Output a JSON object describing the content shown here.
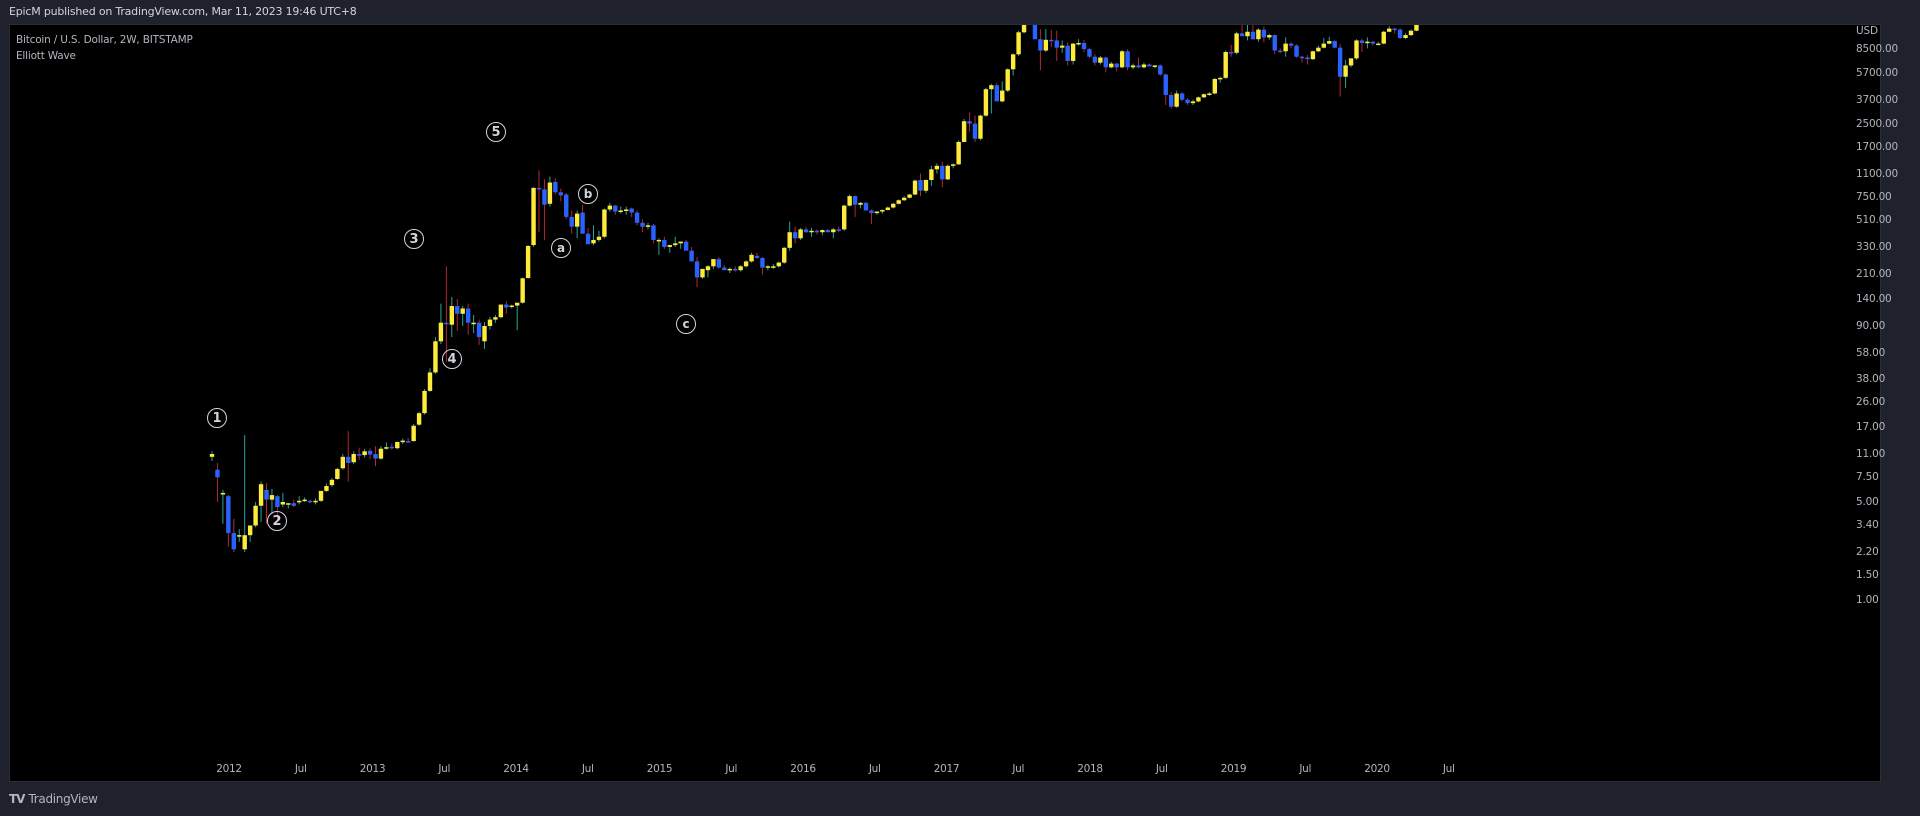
{
  "header": {
    "published_by": "EpicM published on TradingView.com, Mar 11, 2023 19:46 UTC+8"
  },
  "legend": {
    "symbol": "Bitcoin / U.S. Dollar, 2W, BITSTAMP",
    "indicator": "Elliott Wave"
  },
  "footer": {
    "logo_mark": "TV",
    "logo_text": "TradingView"
  },
  "colors": {
    "up_body": "#ffeb3b",
    "down_body": "#2962ff",
    "up_wick": "#26a69a",
    "down_wick": "#b22833",
    "background": "#000000",
    "frame": "#1f222d",
    "text": "#b2b5be"
  },
  "chart_data": {
    "type": "candlestick",
    "title": "Bitcoin / U.S. Dollar, 2W, BITSTAMP",
    "subtitle": "Elliott Wave",
    "currency": "USD",
    "yscale": "log",
    "ylim": [
      0.7,
      20000
    ],
    "price_ticks": [
      "8500.00",
      "5700.00",
      "3700.00",
      "2500.00",
      "1700.00",
      "1100.00",
      "750.00",
      "510.00",
      "330.00",
      "210.00",
      "140.00",
      "90.00",
      "58.00",
      "38.00",
      "26.00",
      "17.00",
      "11.00",
      "7.50",
      "5.00",
      "3.40",
      "2.20",
      "1.50",
      "1.00"
    ],
    "time_ticks": [
      "2012",
      "Jul",
      "2013",
      "Jul",
      "2014",
      "Jul",
      "2015",
      "Jul",
      "2016",
      "Jul",
      "2017",
      "Jul",
      "2018",
      "Jul",
      "2019",
      "Jul",
      "2020",
      "Jul"
    ],
    "wave_labels": [
      {
        "label": "1",
        "date": "2011-11",
        "price": 22
      },
      {
        "label": "2",
        "date": "2012-06",
        "price": 3.3
      },
      {
        "label": "3",
        "date": "2013-04",
        "price": 420
      },
      {
        "label": "4",
        "date": "2013-07",
        "price": 58
      },
      {
        "label": "5",
        "date": "2013-12",
        "price": 2300
      },
      {
        "label": "a",
        "date": "2014-04",
        "price": 290
      },
      {
        "label": "b",
        "date": "2014-06",
        "price": 900
      },
      {
        "label": "c",
        "date": "2015-04",
        "price": 105
      }
    ],
    "candles_ohlc": [
      [
        10.5,
        11.5,
        9.8,
        11.0
      ],
      [
        8.5,
        9.5,
        5.0,
        7.5
      ],
      [
        5.8,
        6.1,
        3.5,
        5.8
      ],
      [
        5.5,
        5.6,
        2.4,
        3.0
      ],
      [
        3.0,
        3.8,
        2.2,
        2.3
      ],
      [
        2.9,
        3.2,
        2.6,
        2.9
      ],
      [
        2.3,
        15.0,
        2.2,
        2.9
      ],
      [
        2.9,
        3.4,
        2.6,
        3.4
      ],
      [
        3.4,
        5.0,
        3.3,
        4.7
      ],
      [
        4.7,
        7.0,
        3.6,
        6.7
      ],
      [
        6.1,
        6.8,
        3.5,
        5.2
      ],
      [
        5.2,
        6.2,
        4.1,
        5.6
      ],
      [
        5.5,
        5.6,
        3.7,
        4.6
      ],
      [
        4.8,
        5.8,
        4.6,
        5.0
      ],
      [
        4.8,
        4.9,
        4.5,
        4.9
      ],
      [
        4.9,
        5.2,
        4.6,
        4.7
      ],
      [
        5.0,
        5.5,
        4.8,
        5.1
      ],
      [
        5.2,
        5.4,
        5.0,
        5.2
      ],
      [
        5.1,
        5.2,
        4.9,
        5.0
      ],
      [
        5.0,
        5.3,
        4.8,
        5.1
      ],
      [
        5.1,
        6.0,
        5.0,
        6.0
      ],
      [
        6.0,
        6.8,
        5.9,
        6.5
      ],
      [
        6.6,
        7.4,
        6.4,
        7.2
      ],
      [
        7.3,
        8.8,
        7.2,
        8.6
      ],
      [
        8.7,
        11.0,
        8.5,
        10.5
      ],
      [
        10.5,
        16.0,
        7.0,
        9.5
      ],
      [
        9.6,
        11.5,
        9.3,
        11.0
      ],
      [
        11.0,
        12.2,
        10.0,
        10.7
      ],
      [
        10.8,
        12.0,
        10.4,
        11.5
      ],
      [
        11.6,
        12.1,
        10.1,
        10.9
      ],
      [
        11.0,
        12.5,
        9.0,
        10.2
      ],
      [
        10.2,
        12.5,
        10.0,
        12.0
      ],
      [
        12.0,
        13.3,
        11.8,
        12.3
      ],
      [
        12.4,
        13.1,
        11.8,
        12.1
      ],
      [
        12.1,
        13.5,
        11.9,
        13.4
      ],
      [
        13.4,
        14.2,
        13.0,
        13.7
      ],
      [
        13.6,
        14.3,
        13.2,
        13.5
      ],
      [
        13.6,
        18.0,
        13.5,
        17.5
      ],
      [
        17.8,
        22.0,
        17.5,
        21.5
      ],
      [
        21.5,
        32.0,
        21.0,
        31.0
      ],
      [
        31.0,
        45.0,
        30.5,
        42.0
      ],
      [
        42.0,
        75.0,
        41.0,
        70.0
      ],
      [
        70.0,
        130.0,
        67.0,
        95.0
      ],
      [
        95.0,
        240.0,
        50.0,
        93.0
      ],
      [
        92.0,
        145.0,
        75.0,
        125.0
      ],
      [
        125.0,
        140.0,
        83.0,
        110.0
      ],
      [
        110.0,
        125.0,
        90.0,
        120.0
      ],
      [
        120.0,
        130.0,
        78.0,
        95.0
      ],
      [
        93.0,
        108.0,
        80.0,
        95.0
      ],
      [
        95.0,
        100.0,
        66.0,
        75.0
      ],
      [
        70.0,
        96.0,
        62.0,
        90.0
      ],
      [
        90.0,
        105.0,
        85.0,
        100.0
      ],
      [
        100.0,
        108.0,
        95.0,
        104.0
      ],
      [
        104.0,
        128.0,
        102.0,
        128.0
      ],
      [
        128.0,
        135.0,
        110.0,
        122.0
      ],
      [
        125.0,
        128.0,
        120.0,
        126.0
      ],
      [
        126.0,
        130.0,
        84.0,
        132.0
      ],
      [
        132.0,
        200.0,
        130.0,
        197.0
      ],
      [
        198.0,
        340.0,
        196.0,
        335.0
      ],
      [
        340.0,
        880.0,
        330.0,
        870.0
      ],
      [
        870.0,
        1160.0,
        420.0,
        850.0
      ],
      [
        850.0,
        1000.0,
        370.0,
        660.0
      ],
      [
        670.0,
        1050.0,
        640.0,
        950.0
      ],
      [
        960.0,
        1020.0,
        780.0,
        810.0
      ],
      [
        810.0,
        860.0,
        700.0,
        770.0
      ],
      [
        780.0,
        800.0,
        520.0,
        540.0
      ],
      [
        540.0,
        600.0,
        410.0,
        460.0
      ],
      [
        460.0,
        600.0,
        380.0,
        570.0
      ],
      [
        580.0,
        660.0,
        540.0,
        410.0
      ],
      [
        410.0,
        450.0,
        345.0,
        345.0
      ],
      [
        350.0,
        470.0,
        340.0,
        370.0
      ],
      [
        370.0,
        430.0,
        360.0,
        390.0
      ],
      [
        390.0,
        620.0,
        380.0,
        610.0
      ],
      [
        610.0,
        680.0,
        590.0,
        650.0
      ],
      [
        650.0,
        660.0,
        560.0,
        590.0
      ],
      [
        590.0,
        640.0,
        570.0,
        600.0
      ],
      [
        610.0,
        640.0,
        560.0,
        610.0
      ],
      [
        620.0,
        630.0,
        540.0,
        580.0
      ],
      [
        580.0,
        600.0,
        470.0,
        490.0
      ],
      [
        490.0,
        520.0,
        420.0,
        460.0
      ],
      [
        465.0,
        490.0,
        440.0,
        470.0
      ],
      [
        470.0,
        480.0,
        350.0,
        370.0
      ],
      [
        370.0,
        380.0,
        290.0,
        370.0
      ],
      [
        370.0,
        390.0,
        320.0,
        330.0
      ],
      [
        330.0,
        340.0,
        300.0,
        340.0
      ],
      [
        340.0,
        390.0,
        330.0,
        350.0
      ],
      [
        350.0,
        360.0,
        320.0,
        360.0
      ],
      [
        360.0,
        370.0,
        330.0,
        310.0
      ],
      [
        310.0,
        330.0,
        280.0,
        260.0
      ],
      [
        260.0,
        280.0,
        170.0,
        200.0
      ],
      [
        200.0,
        230.0,
        195.0,
        230.0
      ],
      [
        225.0,
        245.0,
        200.0,
        240.0
      ],
      [
        240.0,
        270.0,
        230.0,
        270.0
      ],
      [
        270.0,
        280.0,
        230.0,
        235.0
      ],
      [
        235.0,
        245.0,
        225.0,
        225.0
      ],
      [
        225.0,
        235.0,
        215.0,
        230.0
      ],
      [
        230.0,
        240.0,
        220.0,
        225.0
      ],
      [
        225.0,
        245.0,
        220.0,
        240.0
      ],
      [
        240.0,
        265.0,
        235.0,
        260.0
      ],
      [
        260.0,
        300.0,
        255.0,
        290.0
      ],
      [
        285.0,
        300.0,
        270.0,
        275.0
      ],
      [
        275.0,
        280.0,
        210.0,
        235.0
      ],
      [
        235.0,
        245.0,
        225.0,
        240.0
      ],
      [
        240.0,
        250.0,
        230.0,
        240.0
      ],
      [
        240.0,
        260.0,
        235.0,
        255.0
      ],
      [
        255.0,
        330.0,
        250.0,
        325.0
      ],
      [
        325.0,
        500.0,
        310.0,
        420.0
      ],
      [
        420.0,
        460.0,
        350.0,
        380.0
      ],
      [
        380.0,
        450.0,
        370.0,
        440.0
      ],
      [
        440.0,
        460.0,
        415.0,
        420.0
      ],
      [
        420.0,
        450.0,
        390.0,
        430.0
      ],
      [
        430.0,
        440.0,
        405.0,
        420.0
      ],
      [
        420.0,
        440.0,
        400.0,
        435.0
      ],
      [
        435.0,
        445.0,
        420.0,
        420.0
      ],
      [
        420.0,
        450.0,
        380.0,
        440.0
      ],
      [
        440.0,
        460.0,
        420.0,
        435.0
      ],
      [
        440.0,
        660.0,
        430.0,
        650.0
      ],
      [
        650.0,
        780.0,
        640.0,
        760.0
      ],
      [
        760.0,
        770.0,
        540.0,
        660.0
      ],
      [
        660.0,
        690.0,
        620.0,
        680.0
      ],
      [
        680.0,
        690.0,
        600.0,
        600.0
      ],
      [
        600.0,
        610.0,
        480.0,
        575.0
      ],
      [
        575.0,
        590.0,
        560.0,
        590.0
      ],
      [
        590.0,
        610.0,
        570.0,
        605.0
      ],
      [
        605.0,
        640.0,
        600.0,
        630.0
      ],
      [
        630.0,
        680.0,
        620.0,
        670.0
      ],
      [
        670.0,
        720.0,
        660.0,
        710.0
      ],
      [
        710.0,
        760.0,
        700.0,
        740.0
      ],
      [
        740.0,
        790.0,
        730.0,
        780.0
      ],
      [
        780.0,
        1000.0,
        770.0,
        980.0
      ],
      [
        990.0,
        1100.0,
        760.0,
        830.0
      ],
      [
        830.0,
        1000.0,
        800.0,
        990.0
      ],
      [
        990.0,
        1250.0,
        900.0,
        1180.0
      ],
      [
        1180.0,
        1300.0,
        1100.0,
        1250.0
      ],
      [
        1250.0,
        1340.0,
        880.0,
        1000.0
      ],
      [
        1000.0,
        1280.0,
        990.0,
        1250.0
      ],
      [
        1250.0,
        1300.0,
        1200.0,
        1280.0
      ],
      [
        1280.0,
        1900.0,
        1270.0,
        1850.0
      ],
      [
        1850.0,
        2700.0,
        1840.0,
        2600.0
      ],
      [
        2600.0,
        3000.0,
        2200.0,
        2500.0
      ],
      [
        2500.0,
        2850.0,
        1850.0,
        1950.0
      ],
      [
        1950.0,
        2900.0,
        1900.0,
        2850.0
      ],
      [
        2850.0,
        4500.0,
        2800.0,
        4400.0
      ],
      [
        4400.0,
        4800.0,
        2950.0,
        4700.0
      ],
      [
        4700.0,
        4900.0,
        4000.0,
        3600.0
      ],
      [
        3600.0,
        5000.0,
        3550.0,
        4300.0
      ],
      [
        4300.0,
        6200.0,
        4200.0,
        6100.0
      ],
      [
        6100.0,
        7900.0,
        5500.0,
        7800.0
      ],
      [
        7800.0,
        11500.0,
        7600.0,
        11200.0
      ],
      [
        11200.0,
        19800.0,
        11000.0,
        17500.0
      ],
      [
        17500.0,
        19600.0,
        13000.0,
        14000.0
      ],
      [
        14000.0,
        17000.0,
        10000.0,
        10000.0
      ],
      [
        10000.0,
        11800.0,
        6000.0,
        8300.0
      ],
      [
        8300.0,
        11800.0,
        8100.0,
        9900.0
      ],
      [
        9900.0,
        11600.0,
        8800.0,
        9800.0
      ],
      [
        9800.0,
        11500.0,
        7000.0,
        8700.0
      ],
      [
        8700.0,
        9800.0,
        8000.0,
        9000.0
      ],
      [
        9000.0,
        9500.0,
        6500.0,
        7000.0
      ],
      [
        7000.0,
        9400.0,
        6600.0,
        9300.0
      ],
      [
        9300.0,
        10000.0,
        9000.0,
        9400.0
      ],
      [
        9400.0,
        9900.0,
        8100.0,
        8500.0
      ],
      [
        8500.0,
        8700.0,
        7300.0,
        7500.0
      ],
      [
        7500.0,
        7800.0,
        6500.0,
        6800.0
      ],
      [
        6800.0,
        7600.0,
        6600.0,
        7400.0
      ],
      [
        7400.0,
        7500.0,
        5800.0,
        6300.0
      ],
      [
        6300.0,
        6900.0,
        6200.0,
        6700.0
      ],
      [
        6700.0,
        6800.0,
        5900.0,
        6300.0
      ],
      [
        6300.0,
        8400.0,
        6200.0,
        8200.0
      ],
      [
        8200.0,
        8500.0,
        6000.0,
        6300.0
      ],
      [
        6300.0,
        6700.0,
        6100.0,
        6500.0
      ],
      [
        6500.0,
        7400.0,
        6200.0,
        6300.0
      ],
      [
        6300.0,
        6800.0,
        6200.0,
        6600.0
      ],
      [
        6600.0,
        6700.0,
        6400.0,
        6400.0
      ],
      [
        6400.0,
        6500.0,
        6200.0,
        6500.0
      ],
      [
        6500.0,
        6600.0,
        5500.0,
        5600.0
      ],
      [
        5600.0,
        5700.0,
        3400.0,
        4000.0
      ],
      [
        4000.0,
        4200.0,
        3200.0,
        3300.0
      ],
      [
        3300.0,
        4300.0,
        3250.0,
        4100.0
      ],
      [
        4100.0,
        4200.0,
        3600.0,
        3700.0
      ],
      [
        3700.0,
        3800.0,
        3400.0,
        3500.0
      ],
      [
        3500.0,
        3700.0,
        3400.0,
        3600.0
      ],
      [
        3600.0,
        3900.0,
        3550.0,
        3850.0
      ],
      [
        3850.0,
        4100.0,
        3800.0,
        4050.0
      ],
      [
        4050.0,
        4200.0,
        3950.0,
        4100.0
      ],
      [
        4100.0,
        5300.0,
        4050.0,
        5200.0
      ],
      [
        5200.0,
        5400.0,
        4900.0,
        5300.0
      ],
      [
        5300.0,
        8300.0,
        5200.0,
        8100.0
      ],
      [
        8100.0,
        9100.0,
        7500.0,
        8000.0
      ],
      [
        8000.0,
        11300.0,
        7800.0,
        11000.0
      ],
      [
        11000.0,
        13800.0,
        10800.0,
        10500.0
      ],
      [
        10500.0,
        13200.0,
        9800.0,
        11300.0
      ],
      [
        11300.0,
        12600.0,
        9900.0,
        10000.0
      ],
      [
        10000.0,
        12000.0,
        9600.0,
        11700.0
      ],
      [
        11700.0,
        12300.0,
        9500.0,
        10300.0
      ],
      [
        10300.0,
        10900.0,
        9900.0,
        10700.0
      ],
      [
        10700.0,
        10800.0,
        7800.0,
        8300.0
      ],
      [
        8300.0,
        8600.0,
        7900.0,
        8200.0
      ],
      [
        8200.0,
        10300.0,
        7500.0,
        9300.0
      ],
      [
        9300.0,
        9500.0,
        8600.0,
        9000.0
      ],
      [
        9000.0,
        9200.0,
        7400.0,
        7500.0
      ],
      [
        7500.0,
        7600.0,
        6800.0,
        7400.0
      ],
      [
        7400.0,
        7700.0,
        6600.0,
        7200.0
      ],
      [
        7200.0,
        8300.0,
        7100.0,
        8200.0
      ],
      [
        8200.0,
        9000.0,
        8100.0,
        8700.0
      ],
      [
        8700.0,
        10200.0,
        8600.0,
        9300.0
      ],
      [
        9300.0,
        10400.0,
        9200.0,
        9700.0
      ],
      [
        9700.0,
        9800.0,
        8600.0,
        8700.0
      ],
      [
        8700.0,
        9200.0,
        3900.0,
        5400.0
      ],
      [
        5400.0,
        7100.0,
        4500.0,
        6500.0
      ],
      [
        6500.0,
        7300.0,
        6300.0,
        7300.0
      ],
      [
        7300.0,
        10000.0,
        7100.0,
        9800.0
      ],
      [
        9800.0,
        10100.0,
        8100.0,
        9400.0
      ],
      [
        9400.0,
        10300.0,
        8600.0,
        9600.0
      ],
      [
        9600.0,
        9700.0,
        9000.0,
        9300.0
      ],
      [
        9300.0,
        9600.0,
        9100.0,
        9300.0
      ],
      [
        9300.0,
        11500.0,
        9200.0,
        11300.0
      ],
      [
        11300.0,
        12400.0,
        11200.0,
        11900.0
      ],
      [
        11900.0,
        12100.0,
        11000.0,
        11700.0
      ],
      [
        11700.0,
        12000.0,
        10000.0,
        10200.0
      ],
      [
        10200.0,
        11100.0,
        10000.0,
        10700.0
      ],
      [
        10700.0,
        11700.0,
        10500.0,
        11500.0
      ],
      [
        11500.0,
        13200.0,
        11400.0,
        13100.0
      ],
      [
        13100.0,
        16000.0,
        13000.0,
        15600.0
      ]
    ]
  }
}
